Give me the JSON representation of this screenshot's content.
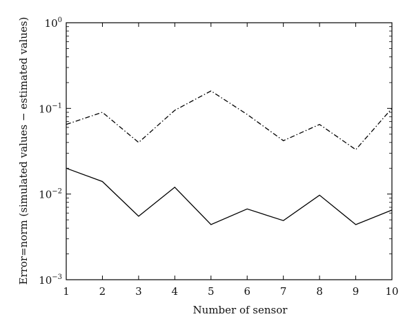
{
  "chart_data": {
    "type": "line",
    "title": "",
    "xlabel": "Number of sensor",
    "ylabel": "Error=norm (simulated values − estimated values)",
    "xlim": [
      1,
      10
    ],
    "ylim": [
      0.001,
      1
    ],
    "yscale": "log",
    "grid": false,
    "legend": "none",
    "x": [
      1,
      2,
      3,
      4,
      5,
      6,
      7,
      8,
      9,
      10
    ],
    "x_ticks": [
      "1",
      "2",
      "3",
      "4",
      "5",
      "6",
      "7",
      "8",
      "9",
      "10"
    ],
    "y_ticks": [
      {
        "value": 0.001,
        "base": "10",
        "exp": "−3"
      },
      {
        "value": 0.01,
        "base": "10",
        "exp": "−2"
      },
      {
        "value": 0.1,
        "base": "10",
        "exp": "−1"
      },
      {
        "value": 1,
        "base": "10",
        "exp": "0"
      }
    ],
    "series": [
      {
        "style": "dashdot",
        "color": "#000000",
        "values": [
          0.065,
          0.09,
          0.04,
          0.095,
          0.16,
          0.085,
          0.042,
          0.065,
          0.033,
          0.1
        ]
      },
      {
        "style": "solid",
        "color": "#000000",
        "values": [
          0.02,
          0.014,
          0.0055,
          0.012,
          0.0044,
          0.0067,
          0.0049,
          0.0097,
          0.0044,
          0.0065
        ]
      }
    ]
  }
}
